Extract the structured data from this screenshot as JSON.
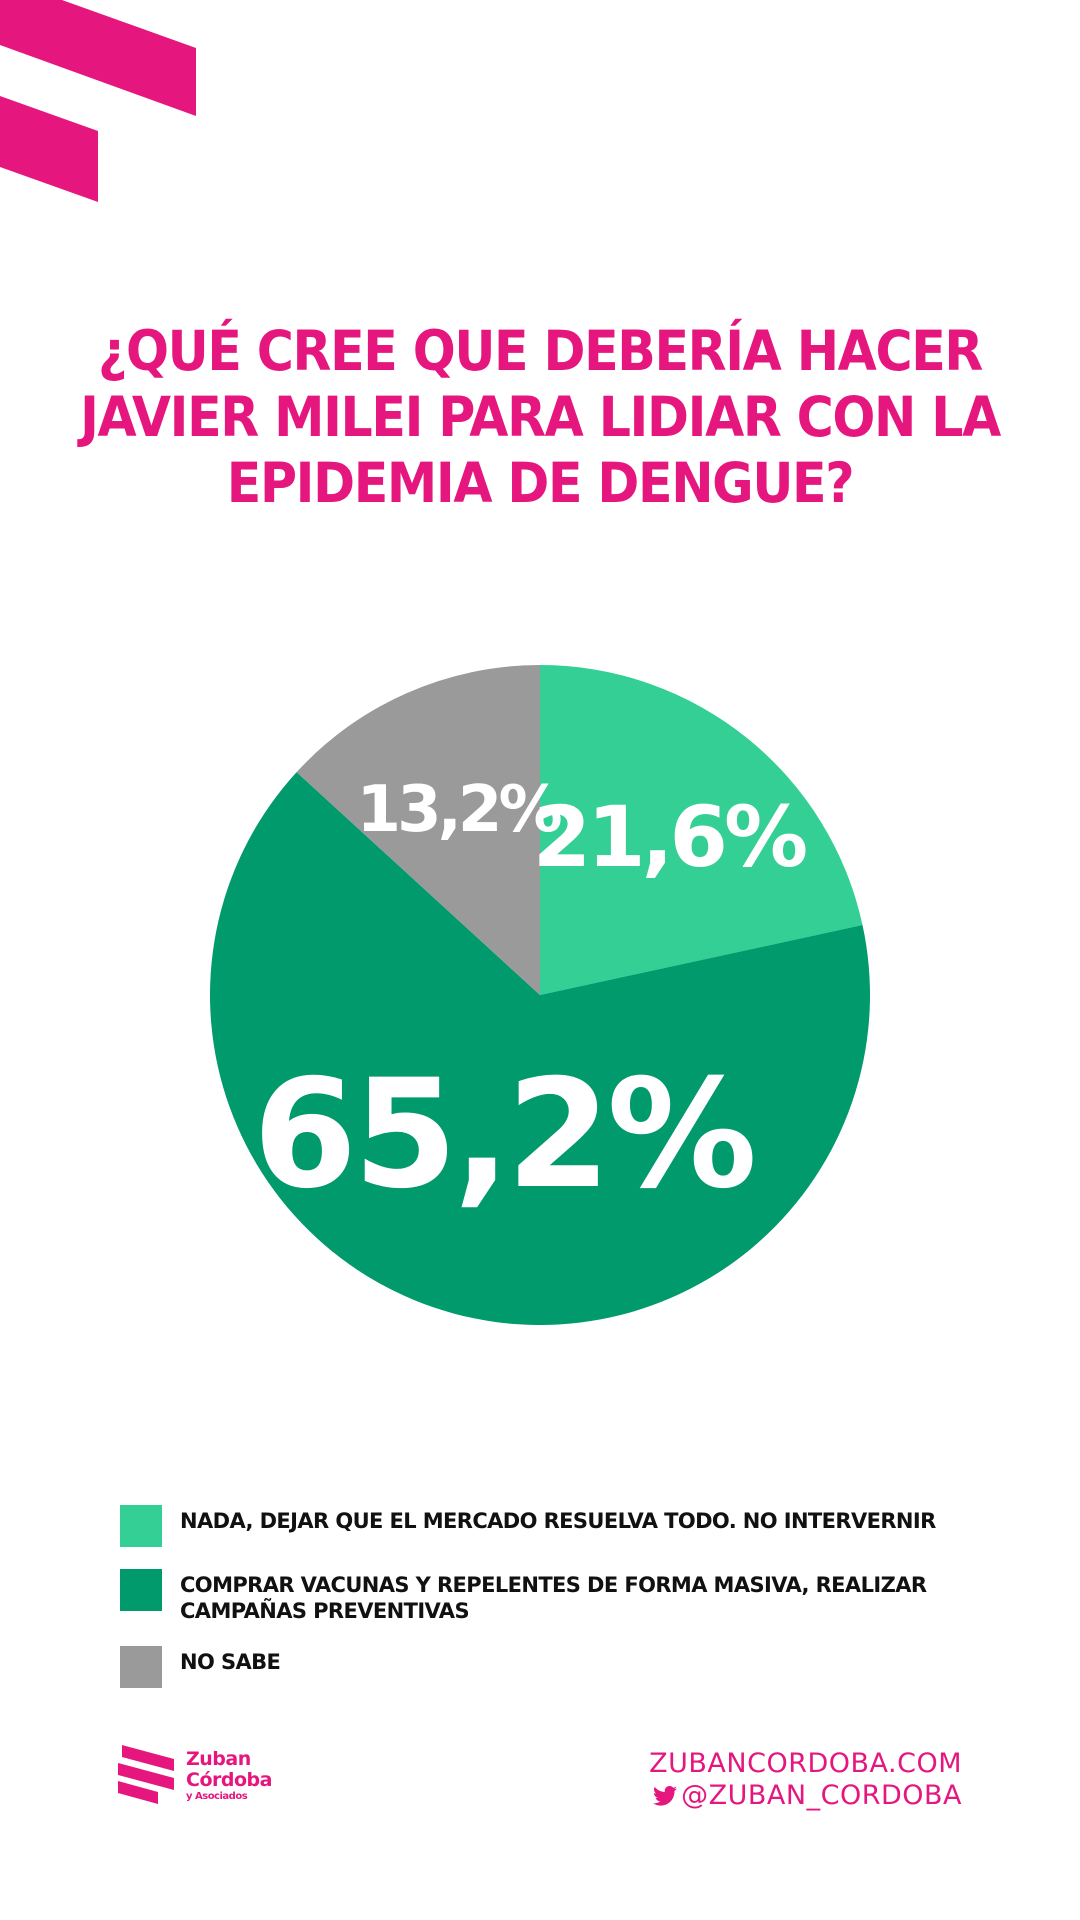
{
  "colors": {
    "brand_pink": "#e5177e",
    "light_green": "#33cf94",
    "dark_green": "#009a6c",
    "gray": "#9a9a9a"
  },
  "title": "¿QUÉ CREE QUE DEBERÍA HACER JAVIER MILEI PARA LIDIAR CON LA EPIDEMIA DE DENGUE?",
  "chart_data": {
    "type": "pie",
    "title": "¿QUÉ CREE QUE DEBERÍA HACER JAVIER MILEI PARA LIDIAR CON LA EPIDEMIA DE DENGUE?",
    "slices": [
      {
        "label": "NADA, DEJAR QUE EL MERCADO RESUELVA TODO. NO INTERVERNIR",
        "value": 21.6,
        "display": "21,6%",
        "color": "#33cf94"
      },
      {
        "label": "COMPRAR VACUNAS Y REPELENTES DE FORMA MASIVA, REALIZAR CAMPAÑAS PREVENTIVAS",
        "value": 65.2,
        "display": "65,2%",
        "color": "#009a6c"
      },
      {
        "label": "NO SABE",
        "value": 13.2,
        "display": "13,2%",
        "color": "#9a9a9a"
      }
    ],
    "legend_position": "bottom"
  },
  "legend": {
    "items": [
      {
        "text": "NADA, DEJAR QUE EL MERCADO RESUELVA TODO. NO INTERVERNIR",
        "color": "#33cf94"
      },
      {
        "text": "COMPRAR VACUNAS Y REPELENTES DE FORMA MASIVA, REALIZAR\nCAMPAÑAS PREVENTIVAS",
        "color": "#009a6c"
      },
      {
        "text": "NO SABE",
        "color": "#9a9a9a"
      }
    ]
  },
  "footer": {
    "brand_line1": "Zuban",
    "brand_line2": "Córdoba",
    "brand_line3": "y Asociados",
    "website": "ZUBANCORDOBA.COM",
    "twitter_handle": "@ZUBAN_CORDOBA",
    "twitter_icon": "twitter-bird-icon",
    "logo_icon": "zuban-cordoba-logo-icon"
  }
}
